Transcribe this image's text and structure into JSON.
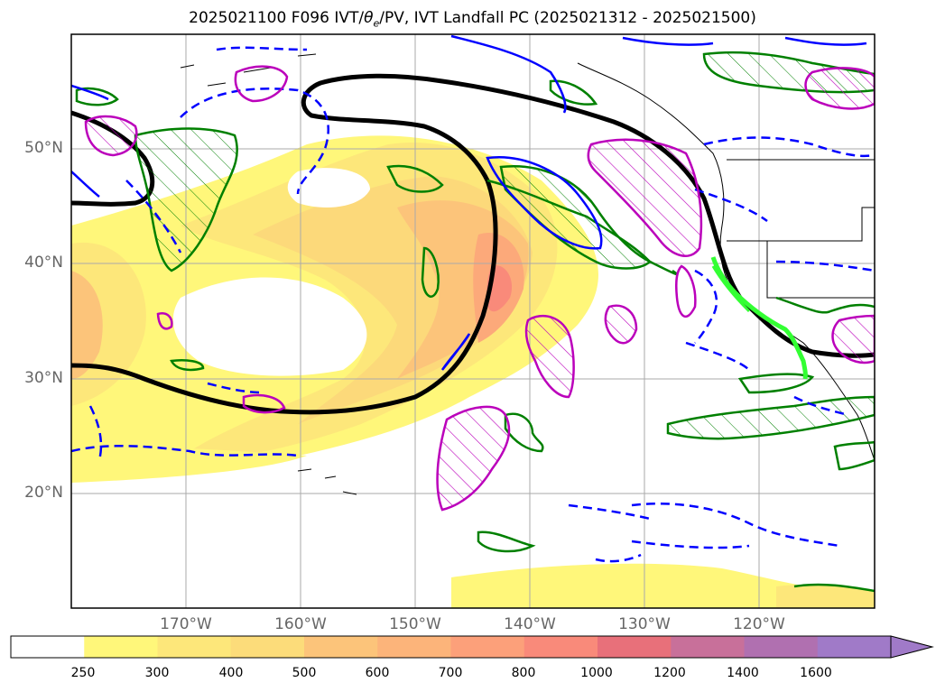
{
  "title": "2025021100 F096 IVT/θe/PV, IVT Landfall PC (2025021312 - 2025021500)",
  "map": {
    "lat_labels": [
      "50°N",
      "40°N",
      "30°N",
      "20°N"
    ],
    "lon_labels": [
      "170°W",
      "160°W",
      "150°W",
      "140°W",
      "130°W",
      "120°W"
    ],
    "ivt_fill_colors": [
      "#fff77a",
      "#fde77a",
      "#fcd97a",
      "#fcc47a",
      "#fca97a"
    ],
    "theta_e_contour_color": "#000000",
    "pv_pos_color": "#008000",
    "pv_neg_color": "#0000ff",
    "hatch_color": "#bb00bb",
    "landfall_color": "#33ff33"
  },
  "colorbar": {
    "ticks": [
      "250",
      "300",
      "400",
      "500",
      "600",
      "700",
      "800",
      "1000",
      "1200",
      "1400",
      "1600"
    ],
    "colors": [
      "#ffffff",
      "#fff77a",
      "#fde77a",
      "#fcdc7a",
      "#fcc47a",
      "#fcb47a",
      "#fca07a",
      "#f98a7a",
      "#e8707a",
      "#c8709a",
      "#b070b0",
      "#a07ac8"
    ]
  }
}
